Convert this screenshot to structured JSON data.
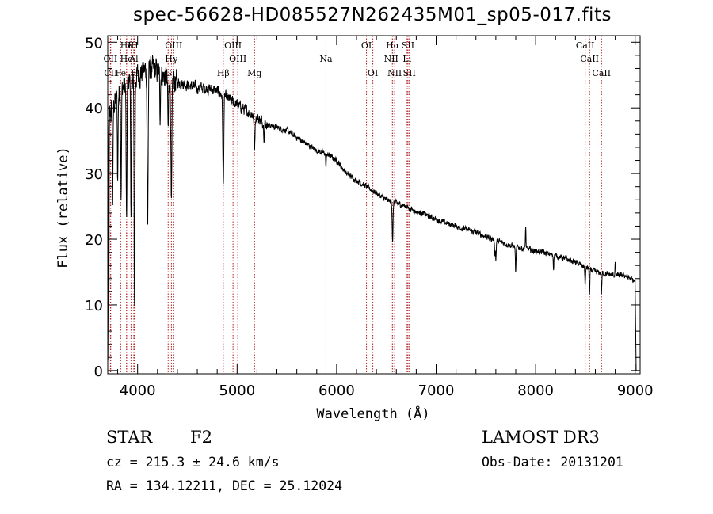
{
  "chart_data": {
    "type": "line",
    "title": "spec-56628-HD085527N262435M01_sp05-017.fits",
    "xlabel": "Wavelength (Å)",
    "ylabel": "Flux (relative)",
    "xlim": [
      3700,
      9050
    ],
    "ylim": [
      -0.5,
      51
    ],
    "xticks": [
      4000,
      5000,
      6000,
      7000,
      8000,
      9000
    ],
    "yticks": [
      0,
      10,
      20,
      30,
      40,
      50
    ],
    "line_color": "#000000",
    "marker_color": "#b22222",
    "line_markers": [
      {
        "label": "Hδ",
        "wavelength": 3890,
        "row": 0
      },
      {
        "label": "K",
        "wavelength": 3934,
        "row": 0
      },
      {
        "label": "H",
        "wavelength": 3969,
        "row": 0
      },
      {
        "label": "OII",
        "wavelength": 3727,
        "row": 1
      },
      {
        "label": "He",
        "wavelength": 3889,
        "row": 1
      },
      {
        "label": "Al",
        "wavelength": 3962,
        "row": 1
      },
      {
        "label": "CII",
        "wavelength": 3730,
        "row": 2
      },
      {
        "label": "Fe",
        "wavelength": 3830,
        "row": 2
      },
      {
        "label": "H",
        "wavelength": 3970,
        "row": 2
      },
      {
        "label": "OIII",
        "wavelength": 4363,
        "row": 0
      },
      {
        "label": "Hγ",
        "wavelength": 4340,
        "row": 1
      },
      {
        "label": "G",
        "wavelength": 4307,
        "row": 2
      },
      {
        "label": "Hβ",
        "wavelength": 4861,
        "row": 2
      },
      {
        "label": "OIII",
        "wavelength": 4959,
        "row": 0
      },
      {
        "label": "OIII",
        "wavelength": 5007,
        "row": 1
      },
      {
        "label": "Mg",
        "wavelength": 5175,
        "row": 2
      },
      {
        "label": "Na",
        "wavelength": 5893,
        "row": 1
      },
      {
        "label": "OI",
        "wavelength": 6300,
        "row": 0
      },
      {
        "label": "OI",
        "wavelength": 6364,
        "row": 2
      },
      {
        "label": "Hα",
        "wavelength": 6563,
        "row": 0
      },
      {
        "label": "NII",
        "wavelength": 6548,
        "row": 1
      },
      {
        "label": "NII",
        "wavelength": 6583,
        "row": 2
      },
      {
        "label": "SII",
        "wavelength": 6717,
        "row": 0
      },
      {
        "label": "Li",
        "wavelength": 6708,
        "row": 1
      },
      {
        "label": "SII",
        "wavelength": 6731,
        "row": 2
      },
      {
        "label": "CaII",
        "wavelength": 8498,
        "row": 0
      },
      {
        "label": "CaII",
        "wavelength": 8542,
        "row": 1
      },
      {
        "label": "CaII",
        "wavelength": 8662,
        "row": 2
      }
    ],
    "continuum": [
      [
        3700,
        38
      ],
      [
        3800,
        42
      ],
      [
        3900,
        44
      ],
      [
        4000,
        45
      ],
      [
        4100,
        46
      ],
      [
        4200,
        45.5
      ],
      [
        4300,
        44.5
      ],
      [
        4400,
        44
      ],
      [
        4500,
        43.5
      ],
      [
        4600,
        43
      ],
      [
        4700,
        43
      ],
      [
        4800,
        42.5
      ],
      [
        4900,
        41.5
      ],
      [
        5000,
        40.5
      ],
      [
        5100,
        39.5
      ],
      [
        5200,
        38.5
      ],
      [
        5300,
        37.5
      ],
      [
        5400,
        37
      ],
      [
        5500,
        36.5
      ],
      [
        5600,
        35.5
      ],
      [
        5700,
        34.5
      ],
      [
        5800,
        33.5
      ],
      [
        5900,
        33
      ],
      [
        6000,
        32
      ],
      [
        6100,
        30
      ],
      [
        6200,
        29
      ],
      [
        6300,
        28
      ],
      [
        6400,
        27
      ],
      [
        6500,
        26
      ],
      [
        6600,
        25.5
      ],
      [
        6700,
        25
      ],
      [
        6800,
        24.2
      ],
      [
        6900,
        23.7
      ],
      [
        7000,
        23
      ],
      [
        7200,
        22
      ],
      [
        7400,
        21
      ],
      [
        7600,
        19.8
      ],
      [
        7800,
        18.8
      ],
      [
        8000,
        18.2
      ],
      [
        8200,
        17.5
      ],
      [
        8400,
        16.5
      ],
      [
        8600,
        15
      ],
      [
        8800,
        14.5
      ],
      [
        8900,
        14.5
      ],
      [
        9000,
        13.5
      ]
    ],
    "absorption": [
      {
        "wavelength": 3710,
        "depth": 38,
        "width": 4
      },
      {
        "wavelength": 3750,
        "depth": 14,
        "width": 5
      },
      {
        "wavelength": 3800,
        "depth": 13,
        "width": 5
      },
      {
        "wavelength": 3835,
        "depth": 16,
        "width": 5
      },
      {
        "wavelength": 3889,
        "depth": 22,
        "width": 6
      },
      {
        "wavelength": 3934,
        "depth": 22,
        "width": 5
      },
      {
        "wavelength": 3969,
        "depth": 35,
        "width": 6
      },
      {
        "wavelength": 4101,
        "depth": 24,
        "width": 7
      },
      {
        "wavelength": 4226,
        "depth": 6,
        "width": 5
      },
      {
        "wavelength": 4307,
        "depth": 8,
        "width": 6
      },
      {
        "wavelength": 4340,
        "depth": 20,
        "width": 7
      },
      {
        "wavelength": 4861,
        "depth": 14,
        "width": 7
      },
      {
        "wavelength": 5175,
        "depth": 5,
        "width": 6
      },
      {
        "wavelength": 5270,
        "depth": 2,
        "width": 5
      },
      {
        "wavelength": 5893,
        "depth": 2,
        "width": 5
      },
      {
        "wavelength": 6563,
        "depth": 6,
        "width": 6
      },
      {
        "wavelength": 7600,
        "depth": 3,
        "width": 5
      },
      {
        "wavelength": 7800,
        "depth": 4,
        "width": 5
      },
      {
        "wavelength": 7590,
        "depth": 2,
        "width": 4
      },
      {
        "wavelength": 8180,
        "depth": 2,
        "width": 4
      },
      {
        "wavelength": 8498,
        "depth": 3,
        "width": 5
      },
      {
        "wavelength": 8542,
        "depth": 4,
        "width": 5
      },
      {
        "wavelength": 8662,
        "depth": 3,
        "width": 5
      }
    ],
    "emission": [
      {
        "wavelength": 7900,
        "height": 3.5,
        "width": 4
      },
      {
        "wavelength": 8800,
        "height": 2,
        "width": 4
      }
    ]
  },
  "footer": {
    "object_type": "STAR",
    "subclass": "F2",
    "survey": "LAMOST DR3",
    "redshift": "cz = 215.3 ± 24.6 km/s",
    "coords": "RA = 134.12211, DEC =  25.12024",
    "obs_date": "Obs-Date: 20131201"
  }
}
